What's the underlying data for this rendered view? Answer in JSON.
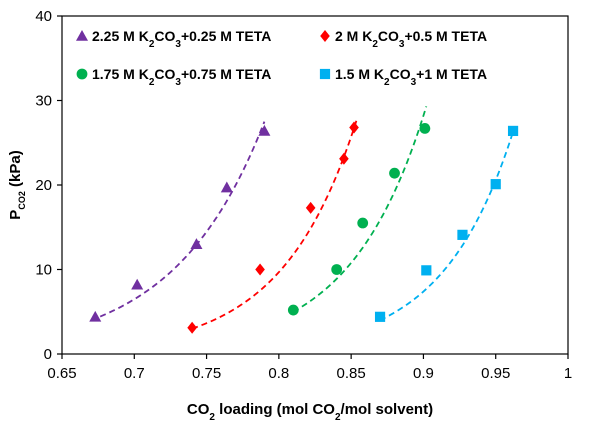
{
  "chart_data": {
    "type": "scatter",
    "xlabel": "CO₂ loading (mol CO₂/mol solvent)",
    "ylabel": "P_CO₂ (kPa)",
    "xlim": [
      0.65,
      1.0
    ],
    "ylim": [
      0,
      40
    ],
    "x_ticks": [
      "0.65",
      "0.7",
      "0.75",
      "0.8",
      "0.85",
      "0.9",
      "0.95",
      "1"
    ],
    "y_ticks": [
      "0",
      "10",
      "20",
      "30",
      "40"
    ],
    "grid": false,
    "legend_position": "top",
    "series": [
      {
        "name": "2.25 M K₂CO₃+0.25 M TETA",
        "marker": "triangle",
        "color": "#7030A0",
        "x": [
          0.673,
          0.702,
          0.743,
          0.764,
          0.79
        ],
        "y": [
          4.4,
          8.2,
          13.0,
          19.7,
          26.4
        ],
        "fit_x": [
          0.67,
          0.79
        ],
        "fit_y": [
          4.0,
          27.5
        ]
      },
      {
        "name": "2 M K₂CO₃+0.5 M TETA",
        "marker": "diamond",
        "color": "#FF0000",
        "x": [
          0.74,
          0.787,
          0.822,
          0.845,
          0.852
        ],
        "y": [
          3.1,
          10.0,
          17.3,
          23.1,
          26.8
        ],
        "fit_x": [
          0.74,
          0.854
        ],
        "fit_y": [
          3.0,
          27.8
        ]
      },
      {
        "name": "1.75 M K₂CO₃+0.75 M TETA",
        "marker": "circle",
        "color": "#00B050",
        "x": [
          0.81,
          0.84,
          0.858,
          0.88,
          0.901
        ],
        "y": [
          5.2,
          10.0,
          15.5,
          21.4,
          26.7
        ],
        "fit_x": [
          0.81,
          0.902
        ],
        "fit_y": [
          5.0,
          29.3
        ]
      },
      {
        "name": "1.5 M K₂CO₃+1 M TETA",
        "marker": "square",
        "color": "#00B0F0",
        "x": [
          0.87,
          0.902,
          0.927,
          0.95,
          0.962
        ],
        "y": [
          4.4,
          9.9,
          14.1,
          20.1,
          26.4
        ],
        "fit_x": [
          0.87,
          0.962
        ],
        "fit_y": [
          4.0,
          26.3
        ]
      }
    ]
  }
}
